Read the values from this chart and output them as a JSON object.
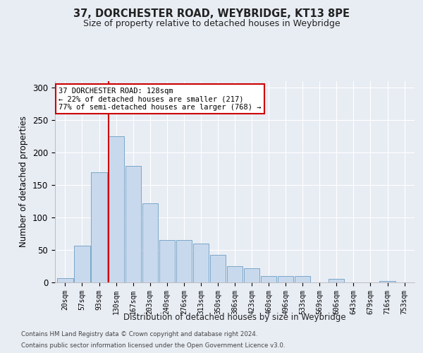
{
  "title": "37, DORCHESTER ROAD, WEYBRIDGE, KT13 8PE",
  "subtitle": "Size of property relative to detached houses in Weybridge",
  "xlabel": "Distribution of detached houses by size in Weybridge",
  "ylabel": "Number of detached properties",
  "categories": [
    "20sqm",
    "57sqm",
    "93sqm",
    "130sqm",
    "167sqm",
    "203sqm",
    "240sqm",
    "276sqm",
    "313sqm",
    "350sqm",
    "386sqm",
    "423sqm",
    "460sqm",
    "496sqm",
    "533sqm",
    "569sqm",
    "606sqm",
    "643sqm",
    "679sqm",
    "716sqm",
    "753sqm"
  ],
  "values": [
    7,
    57,
    170,
    225,
    180,
    122,
    65,
    65,
    60,
    42,
    25,
    22,
    10,
    10,
    10,
    0,
    5,
    0,
    0,
    2,
    0
  ],
  "bar_color": "#c9d9ed",
  "bar_edge_color": "#6b9dc2",
  "background_color": "#e8edf4",
  "grid_color": "#ffffff",
  "annotation_box_color": "#cc0000",
  "annotation_line1": "37 DORCHESTER ROAD: 128sqm",
  "annotation_line2": "← 22% of detached houses are smaller (217)",
  "annotation_line3": "77% of semi-detached houses are larger (768) →",
  "property_bar_index": 3,
  "ylim": [
    0,
    310
  ],
  "yticks": [
    0,
    50,
    100,
    150,
    200,
    250,
    300
  ],
  "footnote1": "Contains HM Land Registry data © Crown copyright and database right 2024.",
  "footnote2": "Contains public sector information licensed under the Open Government Licence v3.0."
}
